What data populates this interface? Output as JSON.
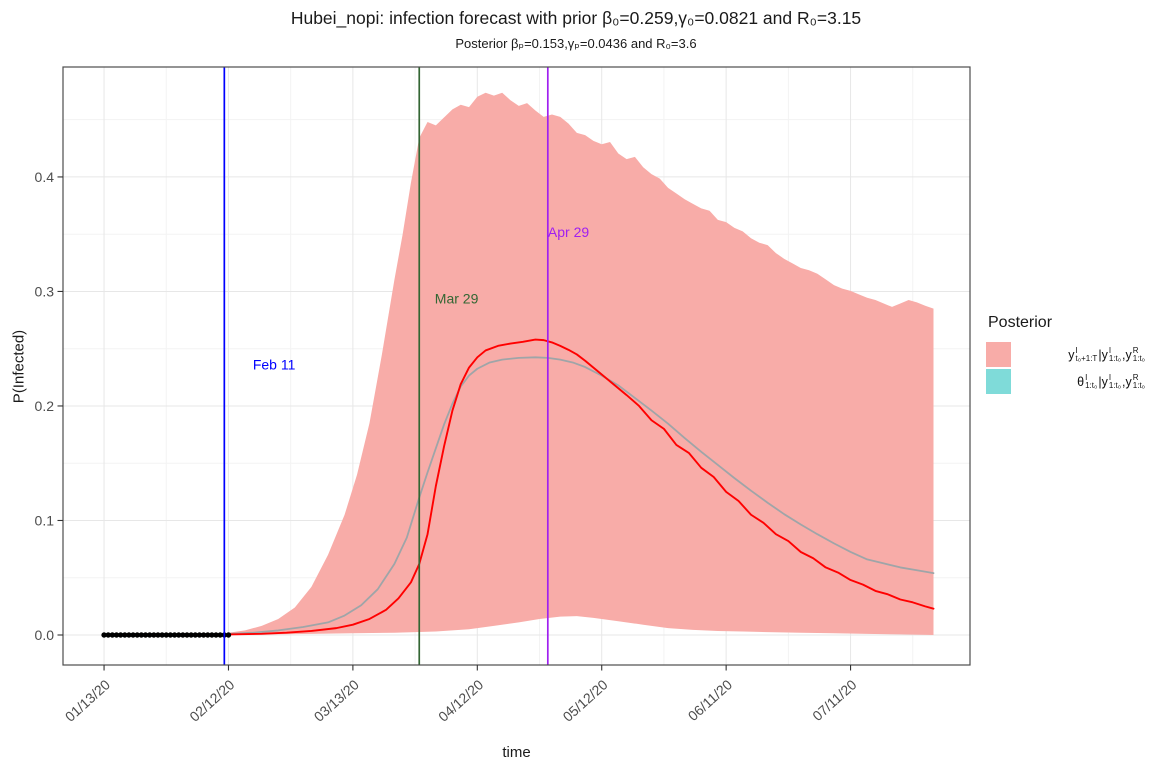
{
  "chart_data": {
    "type": "area",
    "title": "Hubei_nopi: infection forecast with prior β₀=0.259,γ₀=0.0821 and R₀=3.15",
    "subtitle": "Posterior βₚ=0.153,γₚ=0.0436 and R₀=3.6",
    "xlabel": "time",
    "ylabel": "P(Infected)",
    "grid": true,
    "legend_position": "right",
    "x_domain_days": [
      -9.9,
      208.8
    ],
    "y_domain": [
      -0.0262,
      0.496
    ],
    "x_ticks": [
      {
        "day": 0,
        "label": "01/13/20"
      },
      {
        "day": 30,
        "label": "02/12/20"
      },
      {
        "day": 60,
        "label": "03/13/20"
      },
      {
        "day": 90,
        "label": "04/12/20"
      },
      {
        "day": 120,
        "label": "05/12/20"
      },
      {
        "day": 150,
        "label": "06/11/20"
      },
      {
        "day": 180,
        "label": "07/11/20"
      }
    ],
    "x_minor_days": [
      15,
      45,
      75,
      105,
      135,
      165,
      195
    ],
    "y_ticks": [
      {
        "v": 0.0,
        "label": "0.0"
      },
      {
        "v": 0.1,
        "label": "0.1"
      },
      {
        "v": 0.2,
        "label": "0.2"
      },
      {
        "v": 0.3,
        "label": "0.3"
      },
      {
        "v": 0.4,
        "label": "0.4"
      }
    ],
    "y_minor": [
      0.05,
      0.15,
      0.25,
      0.35,
      0.45
    ],
    "colors": {
      "band_pink": "#F8ACA8",
      "band_teal": "#7FDBD9",
      "posterior_median": "#FF0000",
      "prior_mean": "#9FA5A8",
      "observed": "#000000",
      "vline_blue": "#0000FF",
      "vline_green": "#336633",
      "vline_purple": "#A020F0",
      "grid_major": "#E7E7E7",
      "grid_minor": "#F3F3F3",
      "panel_border": "#4D4D4D",
      "tick_text": "#4D4D4D"
    },
    "vlines": [
      {
        "day": 29,
        "label": "Feb 11",
        "color": "#0000FF",
        "label_day": 41,
        "label_v": 0.236
      },
      {
        "day": 76,
        "label": "Mar 29",
        "color": "#336633",
        "label_day": 85,
        "label_v": 0.294
      },
      {
        "day": 107,
        "label": "Apr 29",
        "color": "#A020F0",
        "label_day": 112,
        "label_v": 0.352
      }
    ],
    "series": [
      {
        "name": "theta-posterior-band",
        "type": "band",
        "color": "#7FDBD9",
        "upper": [
          [
            0,
            0.0016
          ],
          [
            30,
            0.0016
          ]
        ],
        "lower": [
          [
            0,
            -0.0016
          ],
          [
            30,
            -0.0016
          ]
        ]
      },
      {
        "name": "forecast-credible-band",
        "type": "band",
        "color": "#F8ACA8",
        "upper": [
          [
            30,
            0.002
          ],
          [
            34,
            0.004
          ],
          [
            38,
            0.008
          ],
          [
            42,
            0.014
          ],
          [
            46,
            0.024
          ],
          [
            50,
            0.042
          ],
          [
            54,
            0.07
          ],
          [
            58,
            0.105
          ],
          [
            61,
            0.14
          ],
          [
            64,
            0.185
          ],
          [
            67,
            0.245
          ],
          [
            70,
            0.31
          ],
          [
            72,
            0.35
          ],
          [
            74,
            0.395
          ],
          [
            76,
            0.434
          ],
          [
            78,
            0.448
          ],
          [
            80,
            0.445
          ],
          [
            82,
            0.452
          ],
          [
            84,
            0.459
          ],
          [
            86,
            0.463
          ],
          [
            88,
            0.461
          ],
          [
            90,
            0.47
          ],
          [
            92,
            0.4735
          ],
          [
            94,
            0.471
          ],
          [
            96,
            0.4735
          ],
          [
            98,
            0.467
          ],
          [
            100,
            0.462
          ],
          [
            102,
            0.4645
          ],
          [
            104,
            0.458
          ],
          [
            106,
            0.4525
          ],
          [
            108,
            0.4545
          ],
          [
            110,
            0.4525
          ],
          [
            112,
            0.4465
          ],
          [
            114,
            0.4385
          ],
          [
            116,
            0.4365
          ],
          [
            118,
            0.4315
          ],
          [
            120,
            0.4285
          ],
          [
            122,
            0.4305
          ],
          [
            124,
            0.4205
          ],
          [
            126,
            0.4155
          ],
          [
            128,
            0.4175
          ],
          [
            130,
            0.4085
          ],
          [
            132,
            0.4025
          ],
          [
            134,
            0.3985
          ],
          [
            136,
            0.3905
          ],
          [
            138,
            0.3855
          ],
          [
            140,
            0.3805
          ],
          [
            142,
            0.3765
          ],
          [
            144,
            0.3725
          ],
          [
            146,
            0.3705
          ],
          [
            148,
            0.3625
          ],
          [
            150,
            0.3605
          ],
          [
            152,
            0.3555
          ],
          [
            154,
            0.3525
          ],
          [
            156,
            0.3465
          ],
          [
            158,
            0.3425
          ],
          [
            160,
            0.3405
          ],
          [
            162,
            0.3335
          ],
          [
            164,
            0.3285
          ],
          [
            166,
            0.3245
          ],
          [
            168,
            0.3205
          ],
          [
            170,
            0.3185
          ],
          [
            172,
            0.3155
          ],
          [
            174,
            0.3105
          ],
          [
            176,
            0.3055
          ],
          [
            178,
            0.3025
          ],
          [
            180,
            0.3005
          ],
          [
            182,
            0.2975
          ],
          [
            184,
            0.2945
          ],
          [
            186,
            0.2925
          ],
          [
            188,
            0.2895
          ],
          [
            190,
            0.2865
          ],
          [
            192,
            0.2895
          ],
          [
            194,
            0.2925
          ],
          [
            196,
            0.2905
          ],
          [
            198,
            0.2875
          ],
          [
            200,
            0.285
          ]
        ],
        "lower": [
          [
            30,
            0.0
          ],
          [
            40,
            0.0005
          ],
          [
            50,
            0.001
          ],
          [
            60,
            0.0015
          ],
          [
            70,
            0.002
          ],
          [
            80,
            0.003
          ],
          [
            88,
            0.005
          ],
          [
            94,
            0.008
          ],
          [
            100,
            0.011
          ],
          [
            105,
            0.014
          ],
          [
            110,
            0.016
          ],
          [
            114,
            0.0165
          ],
          [
            118,
            0.015
          ],
          [
            124,
            0.012
          ],
          [
            130,
            0.009
          ],
          [
            136,
            0.006
          ],
          [
            142,
            0.0045
          ],
          [
            148,
            0.0035
          ],
          [
            154,
            0.003
          ],
          [
            160,
            0.0025
          ],
          [
            168,
            0.002
          ],
          [
            176,
            0.0015
          ],
          [
            184,
            0.001
          ],
          [
            192,
            0.0005
          ],
          [
            200,
            0.0
          ]
        ]
      },
      {
        "name": "prior-mean-line",
        "type": "line",
        "color": "#9FA5A8",
        "width": 1.8,
        "points": [
          [
            30,
            0.001
          ],
          [
            36,
            0.002
          ],
          [
            42,
            0.004
          ],
          [
            48,
            0.007
          ],
          [
            54,
            0.011
          ],
          [
            58,
            0.017
          ],
          [
            62,
            0.026
          ],
          [
            66,
            0.04
          ],
          [
            70,
            0.062
          ],
          [
            73,
            0.085
          ],
          [
            76,
            0.12
          ],
          [
            78,
            0.142
          ],
          [
            80,
            0.163
          ],
          [
            82,
            0.184
          ],
          [
            84,
            0.202
          ],
          [
            86,
            0.217
          ],
          [
            88,
            0.2265
          ],
          [
            90,
            0.2325
          ],
          [
            93,
            0.238
          ],
          [
            96,
            0.2405
          ],
          [
            100,
            0.242
          ],
          [
            104,
            0.2425
          ],
          [
            107,
            0.242
          ],
          [
            110,
            0.2405
          ],
          [
            113,
            0.238
          ],
          [
            116,
            0.234
          ],
          [
            120,
            0.2265
          ],
          [
            124,
            0.218
          ],
          [
            128,
            0.207
          ],
          [
            132,
            0.196
          ],
          [
            136,
            0.1845
          ],
          [
            140,
            0.172
          ],
          [
            144,
            0.16
          ],
          [
            148,
            0.1485
          ],
          [
            152,
            0.137
          ],
          [
            156,
            0.126
          ],
          [
            160,
            0.1155
          ],
          [
            164,
            0.1055
          ],
          [
            168,
            0.0965
          ],
          [
            172,
            0.088
          ],
          [
            176,
            0.08
          ],
          [
            180,
            0.0725
          ],
          [
            184,
            0.066
          ],
          [
            188,
            0.0625
          ],
          [
            192,
            0.059
          ],
          [
            196,
            0.0565
          ],
          [
            200,
            0.054
          ]
        ]
      },
      {
        "name": "posterior-median-line",
        "type": "line",
        "color": "#FF0000",
        "width": 1.9,
        "points": [
          [
            30,
            0.0005
          ],
          [
            38,
            0.001
          ],
          [
            44,
            0.002
          ],
          [
            50,
            0.0035
          ],
          [
            56,
            0.006
          ],
          [
            60,
            0.009
          ],
          [
            64,
            0.014
          ],
          [
            68,
            0.022
          ],
          [
            71,
            0.032
          ],
          [
            74,
            0.046
          ],
          [
            76,
            0.062
          ],
          [
            78,
            0.088
          ],
          [
            80,
            0.13
          ],
          [
            82,
            0.165
          ],
          [
            84,
            0.196
          ],
          [
            86,
            0.219
          ],
          [
            88,
            0.2335
          ],
          [
            90,
            0.2425
          ],
          [
            92,
            0.2485
          ],
          [
            95,
            0.2525
          ],
          [
            98,
            0.2545
          ],
          [
            101,
            0.256
          ],
          [
            104,
            0.258
          ],
          [
            106,
            0.2575
          ],
          [
            108,
            0.2555
          ],
          [
            110,
            0.2525
          ],
          [
            112,
            0.249
          ],
          [
            114,
            0.245
          ],
          [
            116,
            0.2395
          ],
          [
            118,
            0.2335
          ],
          [
            120,
            0.2275
          ],
          [
            122,
            0.2215
          ],
          [
            124,
            0.2155
          ],
          [
            126,
            0.2095
          ],
          [
            129,
            0.2
          ],
          [
            132,
            0.1875
          ],
          [
            135,
            0.18
          ],
          [
            138,
            0.166
          ],
          [
            141,
            0.159
          ],
          [
            144,
            0.146
          ],
          [
            147,
            0.138
          ],
          [
            150,
            0.125
          ],
          [
            153,
            0.117
          ],
          [
            156,
            0.105
          ],
          [
            159,
            0.098
          ],
          [
            162,
            0.088
          ],
          [
            165,
            0.082
          ],
          [
            168,
            0.0725
          ],
          [
            171,
            0.067
          ],
          [
            174,
            0.059
          ],
          [
            177,
            0.0545
          ],
          [
            180,
            0.048
          ],
          [
            183,
            0.044
          ],
          [
            186,
            0.0385
          ],
          [
            189,
            0.0355
          ],
          [
            192,
            0.031
          ],
          [
            195,
            0.0285
          ],
          [
            198,
            0.025
          ],
          [
            200,
            0.023
          ]
        ]
      },
      {
        "name": "observed-points",
        "type": "points",
        "color": "#000000",
        "radius": 2.7,
        "days": [
          0,
          1,
          2,
          3,
          4,
          5,
          6,
          7,
          8,
          9,
          10,
          11,
          12,
          13,
          14,
          15,
          16,
          17,
          18,
          19,
          20,
          21,
          22,
          23,
          24,
          25,
          26,
          27,
          28,
          29,
          30
        ],
        "value": 0.0
      }
    ],
    "legend": {
      "title": "Posterior",
      "items": [
        {
          "color": "#F8ACA8",
          "segments": [
            {
              "t": "y",
              "sup": "I",
              "sub": "t₀+1:T"
            },
            {
              "t": " | "
            },
            {
              "t": "y",
              "sup": "I",
              "sub": "1:t₀"
            },
            {
              "t": ", "
            },
            {
              "t": "y",
              "sup": "R",
              "sub": "1:t₀"
            }
          ]
        },
        {
          "color": "#7FDBD9",
          "segments": [
            {
              "t": "θ",
              "sup": "I",
              "sub": "1:t₀"
            },
            {
              "t": " | "
            },
            {
              "t": "y",
              "sup": "I",
              "sub": "1:t₀"
            },
            {
              "t": ", "
            },
            {
              "t": "y",
              "sup": "R",
              "sub": "1:t₀"
            }
          ]
        }
      ]
    }
  }
}
